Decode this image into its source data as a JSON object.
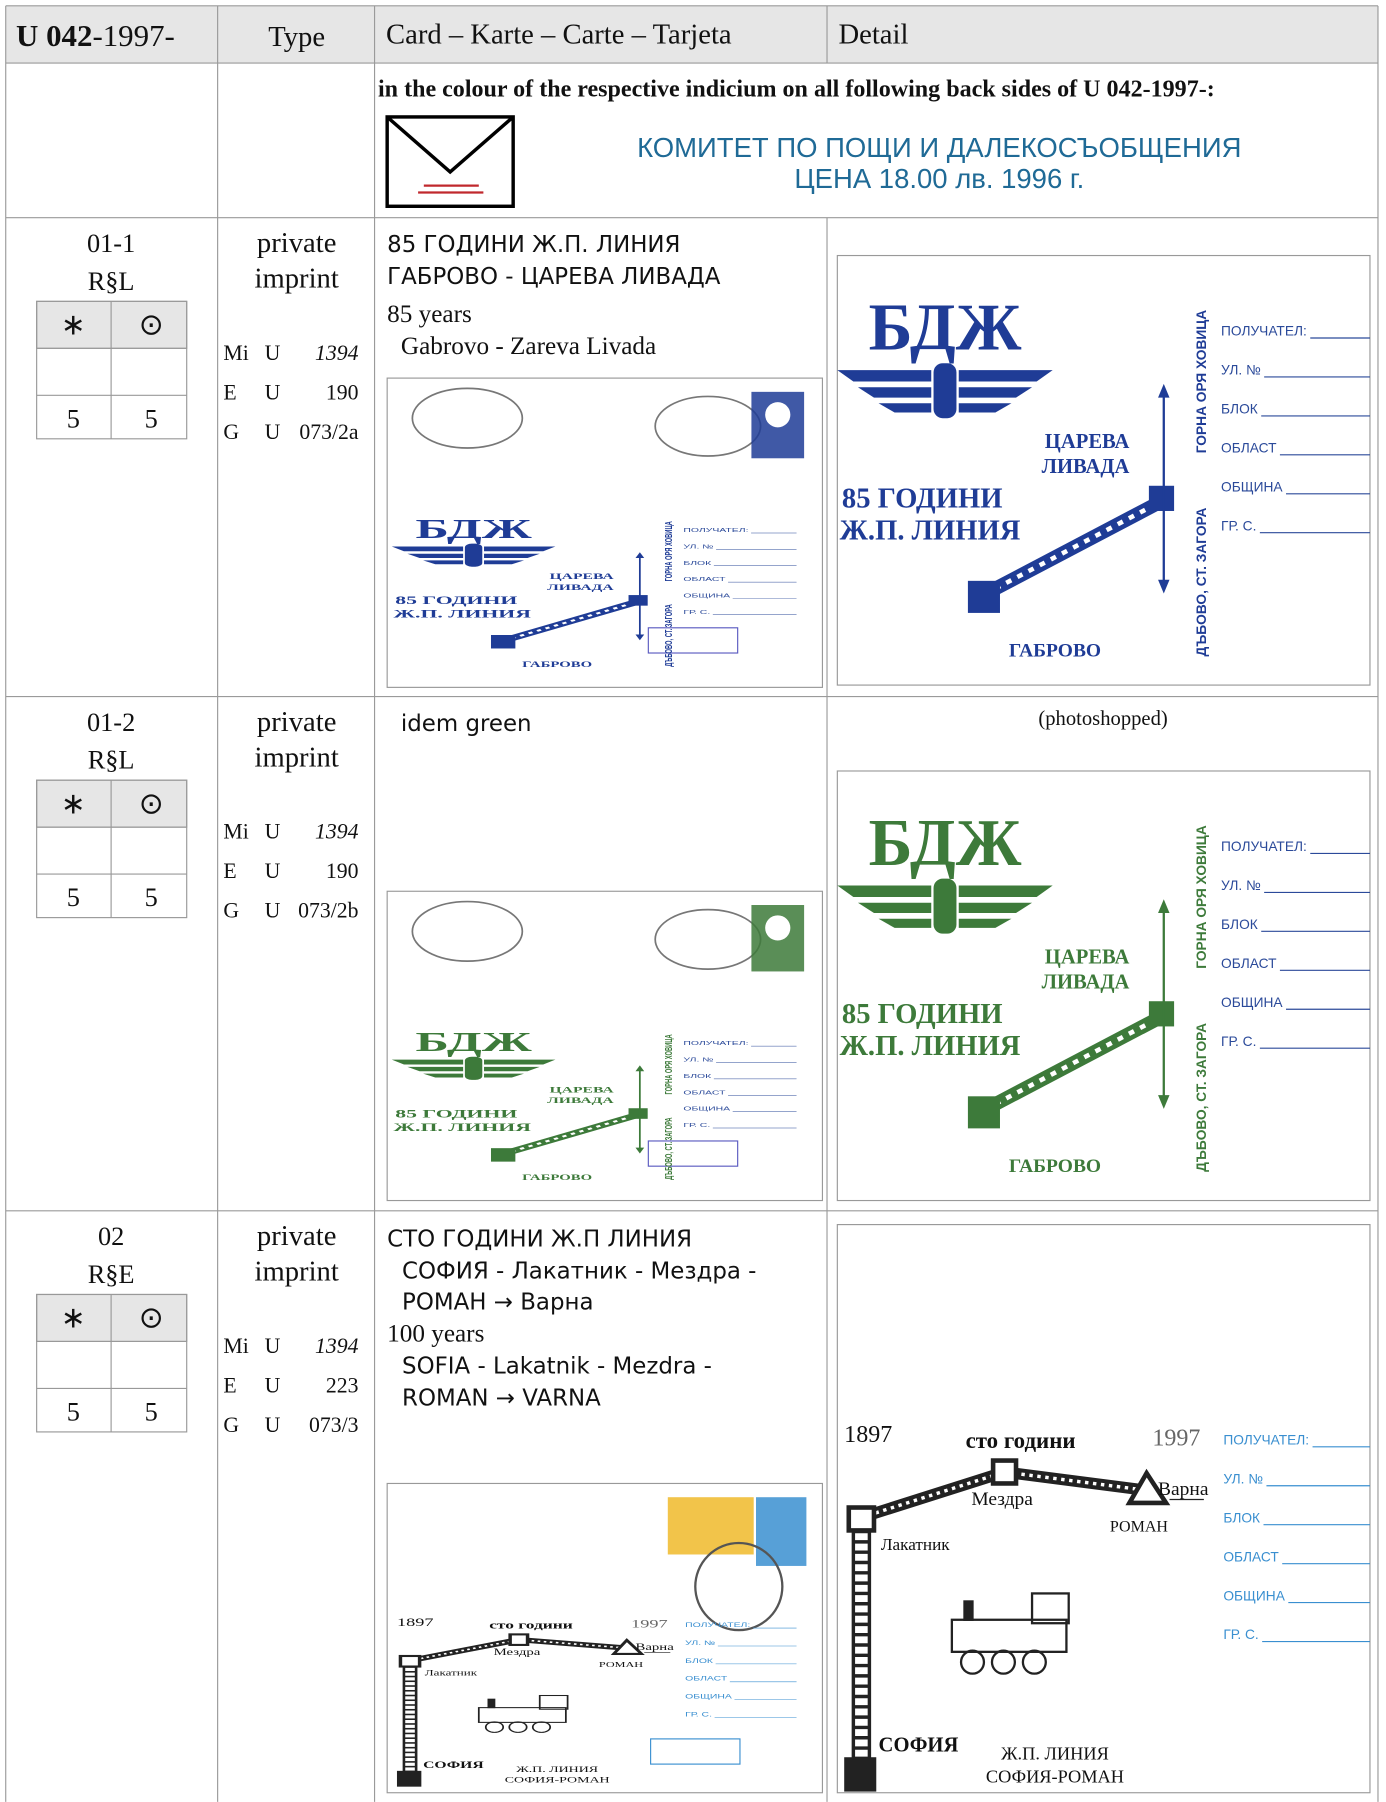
{
  "header": {
    "id_bold": "U 042",
    "id_rest": "-1997-",
    "type": "Type",
    "card": "Card – Karte – Carte – Tarjeta",
    "detail": "Detail"
  },
  "note": {
    "text": "in the colour of the respective indicium on all following back sides of U 042-1997-:",
    "imprint": [
      "КОМИТЕТ ПО ПОЩИ И ДАЛЕКОСЪОБЩЕНИЯ",
      "ЦЕНА 18.00 лв. 1996 г."
    ]
  },
  "art": {
    "gabrovo": {
      "logo": "БДЖ",
      "station": [
        "ЦАРЕВА",
        "ЛИВАДА"
      ],
      "anniversary": [
        "85 ГОДИНИ",
        "Ж.П. ЛИНИЯ"
      ],
      "town": "ГАБРОВО",
      "route_up": "ГОРНА ОРЯ ХОВИЦА",
      "route_down": "ДЪБОВО, СТ. ЗАГОРА",
      "form": [
        "ПОЛУЧАТЕЛ:",
        "УЛ. №",
        "БЛОК",
        "ОБЛАСТ",
        "ОБЩИНА",
        "ГР. С."
      ]
    },
    "sofia": {
      "year_start": "1897",
      "caption": "сто години",
      "year_end": "1997",
      "stations": [
        "Мездра",
        "Варна",
        "РОМАН",
        "Лакатник",
        "СОФИЯ"
      ],
      "line": [
        "Ж.П. ЛИНИЯ",
        "СОФИЯ-РОМАН"
      ],
      "form": [
        "ПОЛУЧАТЕЛ:",
        "УЛ. №",
        "БЛОК",
        "ОБЛАСТ",
        "ОБЩИНА",
        "ГР. С."
      ]
    }
  },
  "rows": [
    {
      "number": "01-1",
      "code": "R§L",
      "stamp_head": [
        "∗",
        "⊙"
      ],
      "prices": [
        "5",
        "5"
      ],
      "type": [
        "private",
        "imprint"
      ],
      "catalog": [
        [
          "Mi",
          "U",
          "1394"
        ],
        [
          "E",
          "U",
          "190"
        ],
        [
          "G",
          "U",
          "073/2a"
        ]
      ],
      "card_lines": [
        "85 ГОДИНИ Ж.П. ЛИНИЯ",
        "ГАБРОВО - ЦАРЕВА ЛИВАДА",
        "85 years",
        "Gabrovo - Zareva  Livada"
      ],
      "color": "#1f3c96"
    },
    {
      "number": "01-2",
      "code": "R§L",
      "stamp_head": [
        "∗",
        "⊙"
      ],
      "prices": [
        "5",
        "5"
      ],
      "type": [
        "private",
        "imprint"
      ],
      "catalog": [
        [
          "Mi",
          "U",
          "1394"
        ],
        [
          "E",
          "U",
          "190"
        ],
        [
          "G",
          "U",
          "073/2b"
        ]
      ],
      "card_lines": [
        "idem green"
      ],
      "detail_note": "(photoshopped)",
      "color": "#3d7a3a"
    },
    {
      "number": "02",
      "code": "R§E",
      "stamp_head": [
        "∗",
        "⊙"
      ],
      "prices": [
        "5",
        "5"
      ],
      "type": [
        "private",
        "imprint"
      ],
      "catalog": [
        [
          "Mi",
          "U",
          "1394"
        ],
        [
          "E",
          "U",
          "223"
        ],
        [
          "G",
          "U",
          "073/3"
        ]
      ],
      "card_lines": [
        "СТО ГОДИНИ Ж.П ЛИНИЯ",
        "СОФИЯ - Лакатник - Мездра -",
        "РОМАН → Варна",
        "100 years",
        "SOFIA - Lakatnik - Mezdra -",
        "ROMAN → VARNA"
      ],
      "color": "#222222"
    }
  ]
}
